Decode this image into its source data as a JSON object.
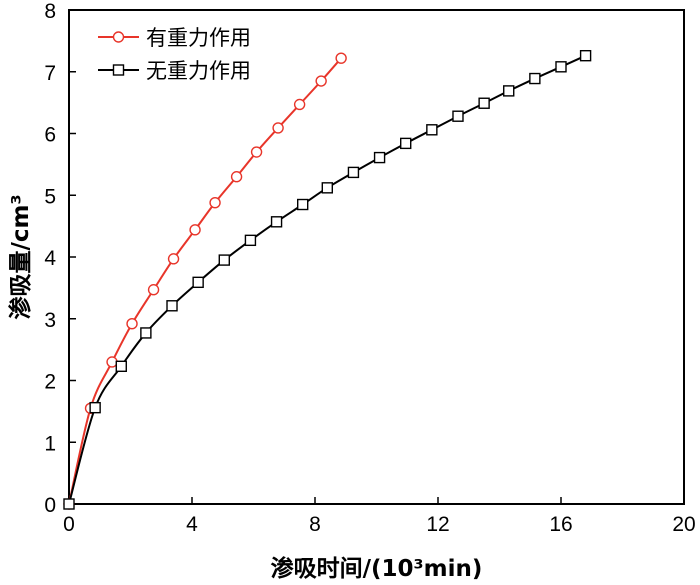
{
  "chart_data": {
    "type": "line",
    "xlabel": "渗吸时间/(10³min)",
    "ylabel": "渗吸量/cm³",
    "xlim": [
      0,
      20
    ],
    "ylim": [
      0,
      8
    ],
    "x_ticks": [
      "0",
      "4",
      "8",
      "12",
      "16",
      "20"
    ],
    "y_ticks": [
      "0",
      "1",
      "2",
      "3",
      "4",
      "5",
      "6",
      "7",
      "8"
    ],
    "grid": false,
    "legend_position": "top-left",
    "series": [
      {
        "name": "有重力作用",
        "color": "#e8352a",
        "marker": "circle",
        "x": [
          0,
          0.7,
          1.4,
          2.05,
          2.75,
          3.4,
          4.1,
          4.75,
          5.45,
          6.1,
          6.8,
          7.5,
          8.2,
          8.85
        ],
        "y": [
          0,
          1.55,
          2.3,
          2.92,
          3.47,
          3.97,
          4.44,
          4.88,
          5.3,
          5.7,
          6.09,
          6.47,
          6.85,
          7.22
        ]
      },
      {
        "name": "无重力作用",
        "color": "#000000",
        "marker": "square",
        "x": [
          0,
          0.85,
          1.7,
          2.5,
          3.35,
          4.2,
          5.05,
          5.9,
          6.75,
          7.6,
          8.4,
          9.25,
          10.1,
          10.95,
          11.8,
          12.65,
          13.5,
          14.3,
          15.15,
          16.0,
          16.8
        ],
        "y": [
          0,
          1.56,
          2.23,
          2.77,
          3.21,
          3.59,
          3.95,
          4.27,
          4.57,
          4.85,
          5.12,
          5.37,
          5.61,
          5.84,
          6.06,
          6.28,
          6.49,
          6.69,
          6.89,
          7.08,
          7.26
        ]
      }
    ]
  }
}
